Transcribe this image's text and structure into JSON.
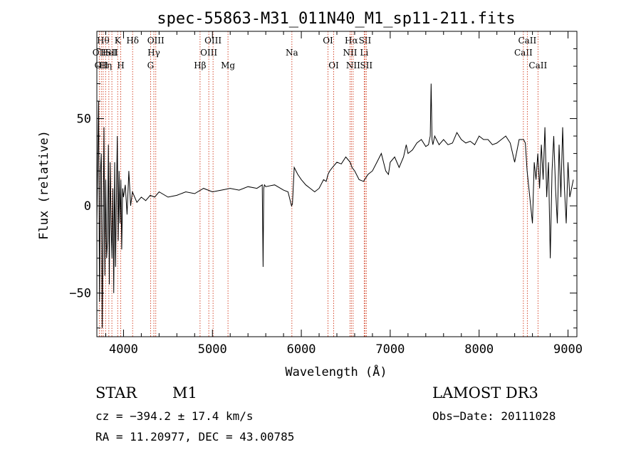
{
  "chart_data": {
    "type": "line",
    "title": "spec-55863-M31_011N40_M1_sp11-211.fits",
    "xlabel": "Wavelength (Å)",
    "ylabel": "Flux (relative)",
    "xlim": [
      3700,
      9100
    ],
    "ylim": [
      -75,
      100
    ],
    "xticks": [
      4000,
      5000,
      6000,
      7000,
      8000,
      9000
    ],
    "yticks": [
      -50,
      0,
      50
    ],
    "series": [
      {
        "name": "flux",
        "x": [
          3700,
          3720,
          3730,
          3740,
          3750,
          3760,
          3770,
          3780,
          3790,
          3800,
          3810,
          3820,
          3830,
          3840,
          3850,
          3860,
          3870,
          3880,
          3890,
          3900,
          3910,
          3920,
          3930,
          3940,
          3950,
          3960,
          3970,
          3980,
          3990,
          4000,
          4020,
          4040,
          4060,
          4080,
          4100,
          4150,
          4200,
          4250,
          4300,
          4350,
          4400,
          4500,
          4600,
          4700,
          4800,
          4900,
          5000,
          5100,
          5200,
          5300,
          5400,
          5500,
          5560,
          5570,
          5577,
          5585,
          5600,
          5700,
          5800,
          5850,
          5880,
          5890,
          5900,
          5920,
          5940,
          5960,
          6000,
          6050,
          6100,
          6150,
          6200,
          6250,
          6280,
          6300,
          6320,
          6350,
          6400,
          6450,
          6500,
          6550,
          6570,
          6600,
          6650,
          6700,
          6750,
          6800,
          6850,
          6900,
          6950,
          6980,
          7000,
          7050,
          7100,
          7150,
          7180,
          7200,
          7250,
          7300,
          7350,
          7400,
          7430,
          7450,
          7460,
          7470,
          7480,
          7500,
          7550,
          7600,
          7650,
          7700,
          7750,
          7800,
          7850,
          7900,
          7950,
          8000,
          8050,
          8100,
          8150,
          8200,
          8250,
          8300,
          8350,
          8400,
          8450,
          8500,
          8520,
          8540,
          8560,
          8580,
          8600,
          8620,
          8640,
          8660,
          8680,
          8700,
          8720,
          8740,
          8760,
          8780,
          8800,
          8820,
          8840,
          8860,
          8880,
          8900,
          8920,
          8940,
          8960,
          8980,
          9000,
          9020,
          9040,
          9060
        ],
        "y": [
          -10,
          60,
          -55,
          20,
          30,
          -70,
          -15,
          45,
          -40,
          15,
          -30,
          -20,
          35,
          -45,
          25,
          -10,
          -30,
          10,
          -50,
          25,
          -35,
          5,
          40,
          -20,
          20,
          -10,
          15,
          -25,
          10,
          5,
          12,
          -5,
          20,
          0,
          8,
          2,
          5,
          3,
          6,
          5,
          8,
          5,
          6,
          8,
          7,
          10,
          8,
          9,
          10,
          9,
          11,
          10,
          12,
          -35,
          10,
          12,
          11,
          12,
          9,
          8,
          2,
          0,
          1,
          22,
          20,
          18,
          15,
          12,
          10,
          8,
          10,
          15,
          14,
          18,
          20,
          22,
          25,
          24,
          28,
          25,
          22,
          20,
          15,
          14,
          18,
          20,
          25,
          30,
          20,
          18,
          25,
          28,
          22,
          28,
          35,
          30,
          32,
          36,
          38,
          34,
          35,
          40,
          70,
          38,
          35,
          40,
          35,
          38,
          35,
          36,
          42,
          38,
          36,
          37,
          35,
          40,
          38,
          38,
          35,
          36,
          38,
          40,
          36,
          25,
          38,
          38,
          36,
          20,
          10,
          0,
          -10,
          25,
          15,
          30,
          10,
          35,
          15,
          45,
          5,
          25,
          -30,
          20,
          40,
          10,
          -10,
          35,
          5,
          45,
          10,
          -10,
          25,
          5,
          10,
          15
        ]
      }
    ],
    "line_markers": [
      {
        "wavelength": 3727,
        "label": "OII",
        "row": 2,
        "color": "#cc2200"
      },
      {
        "wavelength": 3750,
        "label": "OII",
        "row": 3,
        "color": "#cc2200"
      },
      {
        "wavelength": 3771,
        "label": "Hθ",
        "row": 1,
        "color": "#cc2200"
      },
      {
        "wavelength": 3798,
        "label": "Hη",
        "row": 3,
        "color": "#cc2200"
      },
      {
        "wavelength": 3835,
        "label": "HeI",
        "row": 2,
        "color": "#cc2200"
      },
      {
        "wavelength": 3869,
        "label": "SII",
        "row": 2,
        "color": "#cc2200"
      },
      {
        "wavelength": 3934,
        "label": "K",
        "row": 1,
        "color": "#cc2200"
      },
      {
        "wavelength": 3969,
        "label": "H",
        "row": 3,
        "color": "#cc2200"
      },
      {
        "wavelength": 4102,
        "label": "Hδ",
        "row": 1,
        "color": "#cc2200"
      },
      {
        "wavelength": 4304,
        "label": "G",
        "row": 3,
        "color": "#cc2200"
      },
      {
        "wavelength": 4341,
        "label": "Hγ",
        "row": 2,
        "color": "#cc2200"
      },
      {
        "wavelength": 4363,
        "label": "OIII",
        "row": 1,
        "color": "#cc2200"
      },
      {
        "wavelength": 4861,
        "label": "Hβ",
        "row": 3,
        "color": "#cc2200"
      },
      {
        "wavelength": 4959,
        "label": "OIII",
        "row": 2,
        "color": "#cc2200"
      },
      {
        "wavelength": 5007,
        "label": "OIII",
        "row": 1,
        "color": "#cc2200"
      },
      {
        "wavelength": 5175,
        "label": "Mg",
        "row": 3,
        "color": "#cc2200"
      },
      {
        "wavelength": 5894,
        "label": "Na",
        "row": 2,
        "color": "#cc2200"
      },
      {
        "wavelength": 6300,
        "label": "OI",
        "row": 1,
        "color": "#cc2200"
      },
      {
        "wavelength": 6364,
        "label": "OI",
        "row": 3,
        "color": "#cc2200"
      },
      {
        "wavelength": 6548,
        "label": "NII",
        "row": 2,
        "color": "#cc2200"
      },
      {
        "wavelength": 6563,
        "label": "Hα",
        "row": 1,
        "color": "#cc2200"
      },
      {
        "wavelength": 6583,
        "label": "NII",
        "row": 3,
        "color": "#cc2200"
      },
      {
        "wavelength": 6707,
        "label": "Li",
        "row": 2,
        "color": "#cc2200"
      },
      {
        "wavelength": 6716,
        "label": "SII",
        "row": 1,
        "color": "#cc2200"
      },
      {
        "wavelength": 6731,
        "label": "SII",
        "row": 3,
        "color": "#cc2200"
      },
      {
        "wavelength": 8498,
        "label": "CaII",
        "row": 2,
        "color": "#cc2200"
      },
      {
        "wavelength": 8542,
        "label": "CaII",
        "row": 1,
        "color": "#cc2200"
      },
      {
        "wavelength": 8662,
        "label": "CaII",
        "row": 3,
        "color": "#cc2200"
      }
    ]
  },
  "info": {
    "class_label": "STAR",
    "subclass_label": "M1",
    "survey": "LAMOST DR3",
    "cz": "cz = −394.2 ± 17.4 km/s",
    "obs_date": "Obs−Date: 20111028",
    "coords": "RA =  11.20977, DEC =  43.00785"
  }
}
